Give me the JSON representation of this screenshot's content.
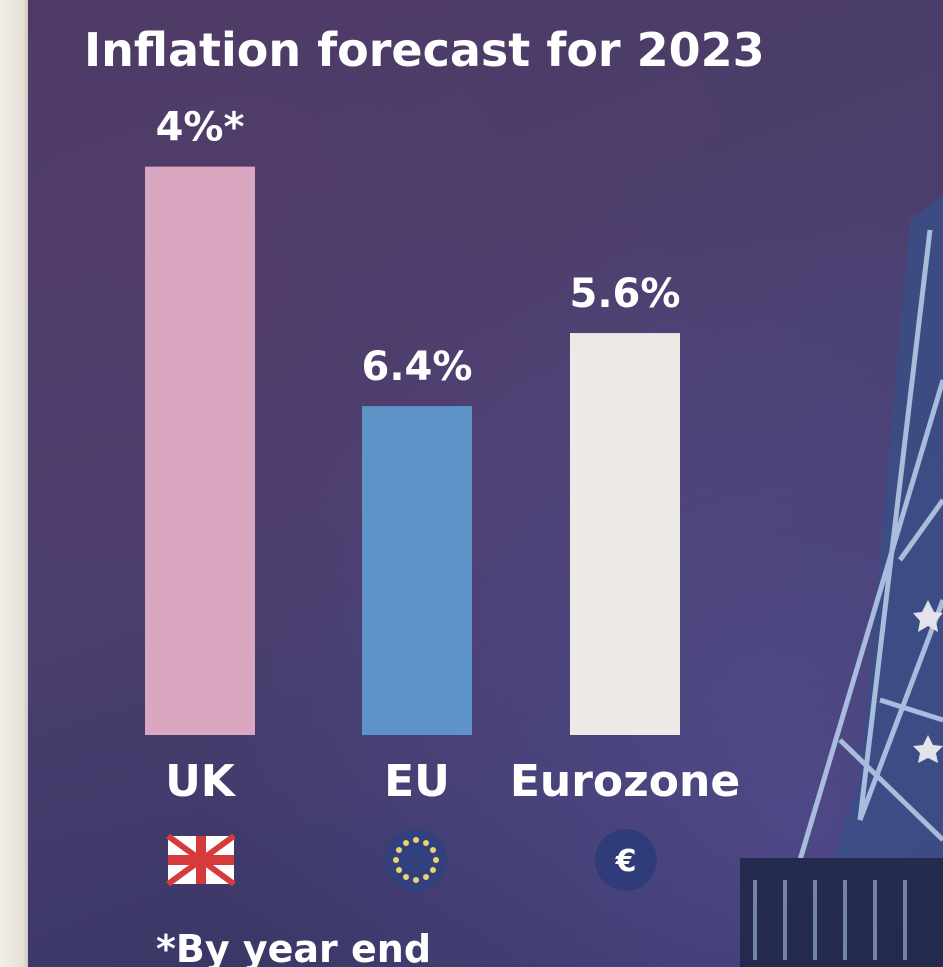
{
  "chart_data": {
    "type": "bar",
    "title": "Inflation forecast for 2023",
    "categories": [
      "UK",
      "EU",
      "Eurozone"
    ],
    "values": [
      4,
      6.4,
      5.6
    ],
    "data_labels": [
      "4%*",
      "6.4%",
      "5.6%"
    ],
    "colors": [
      "#d9a7bf",
      "#5d93c6",
      "#ece9e6"
    ],
    "footnote": "*By year end",
    "xlabel": "",
    "ylabel": "",
    "icons": [
      "uk-flag-icon",
      "eu-flag-icon",
      "euro-coin-icon"
    ],
    "euro_symbol": "€"
  },
  "background": {
    "panel_color": "#463b68"
  }
}
